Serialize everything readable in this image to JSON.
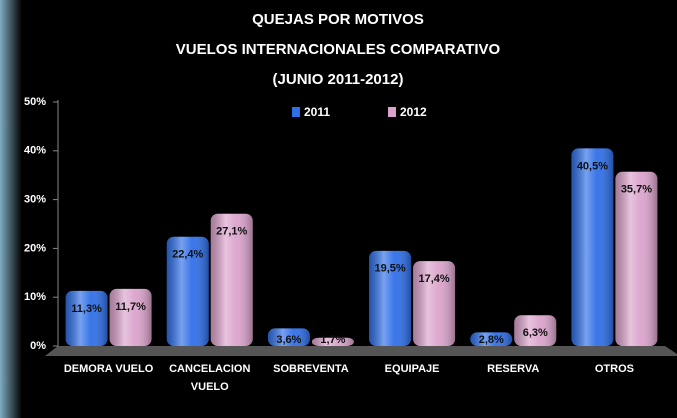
{
  "chart_data": {
    "type": "bar",
    "title": "QUEJAS POR MOTIVOS",
    "subtitle": [
      "VUELOS INTERNACIONALES COMPARATIVO",
      "(JUNIO  2011-2012)"
    ],
    "categories": [
      "DEMORA VUELO",
      "CANCELACION VUELO",
      "SOBREVENTA",
      "EQUIPAJE",
      "RESERVA",
      "OTROS"
    ],
    "series": [
      {
        "name": "2011",
        "color": "#2f6fe8",
        "values": [
          11.3,
          22.4,
          3.6,
          19.5,
          2.8,
          40.5
        ],
        "value_labels": [
          "11,3%",
          "22,4%",
          "3,6%",
          "19,5%",
          "2,8%",
          "40,5%"
        ]
      },
      {
        "name": "2012",
        "color": "#dba3cc",
        "values": [
          11.7,
          27.1,
          1.7,
          17.4,
          6.3,
          35.7
        ],
        "value_labels": [
          "11,7%",
          "27,1%",
          "1,7%",
          "17,4%",
          "6,3%",
          "35,7%"
        ]
      }
    ],
    "ylim": [
      0,
      50
    ],
    "yticks": [
      {
        "value": 0,
        "label": "0%"
      },
      {
        "value": 10,
        "label": "10%"
      },
      {
        "value": 20,
        "label": "20%"
      },
      {
        "value": 30,
        "label": "30%"
      },
      {
        "value": 40,
        "label": "40%"
      },
      {
        "value": 50,
        "label": "50%"
      }
    ],
    "grid": false,
    "legend": "top"
  }
}
